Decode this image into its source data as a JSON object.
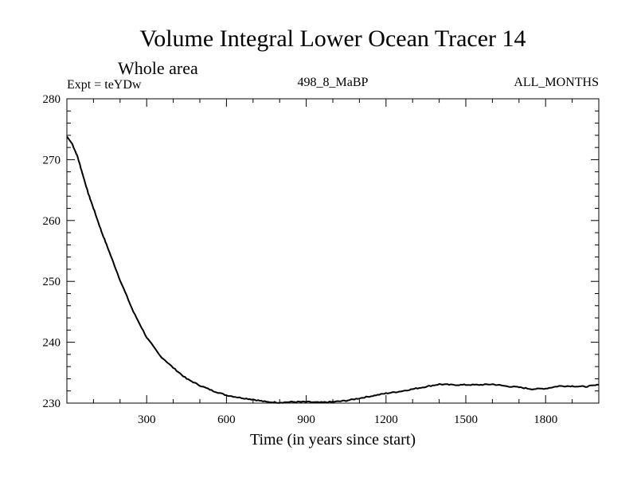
{
  "chart_data": {
    "type": "line",
    "title": "Volume Integral Lower Ocean Tracer 14",
    "subtitle": "Whole area",
    "left_label": "Expt = teYDw",
    "center_label": "498_8_MaBP",
    "right_label": "ALL_MONTHS",
    "xlabel": "Time (in years since start)",
    "ylabel": "",
    "xlim": [
      0,
      2000
    ],
    "ylim": [
      230,
      280
    ],
    "xticks": [
      300,
      600,
      900,
      1200,
      1500,
      1800
    ],
    "yticks": [
      230,
      240,
      250,
      260,
      270,
      280
    ],
    "grid": false,
    "series": [
      {
        "name": "teYDw",
        "color": "#000000",
        "x": [
          0,
          20,
          40,
          60,
          80,
          100,
          130,
          160,
          200,
          250,
          300,
          350,
          400,
          450,
          500,
          550,
          600,
          650,
          700,
          750,
          800,
          850,
          900,
          950,
          1000,
          1050,
          1100,
          1150,
          1200,
          1250,
          1300,
          1350,
          1400,
          1450,
          1500,
          1550,
          1600,
          1650,
          1700,
          1750,
          1800,
          1850,
          1900,
          1950,
          2000
        ],
        "y": [
          273.8,
          272.6,
          270.5,
          267.5,
          264.5,
          262.0,
          258.2,
          254.8,
          250.2,
          245.0,
          240.8,
          237.8,
          235.8,
          234.0,
          232.9,
          232.0,
          231.3,
          230.9,
          230.6,
          230.2,
          230.1,
          230.2,
          230.2,
          230.1,
          230.2,
          230.4,
          230.8,
          231.2,
          231.6,
          231.9,
          232.3,
          232.7,
          233.1,
          233.0,
          233.0,
          233.0,
          233.1,
          232.8,
          232.6,
          232.3,
          232.4,
          232.8,
          232.8,
          232.7,
          233.0
        ]
      }
    ]
  }
}
